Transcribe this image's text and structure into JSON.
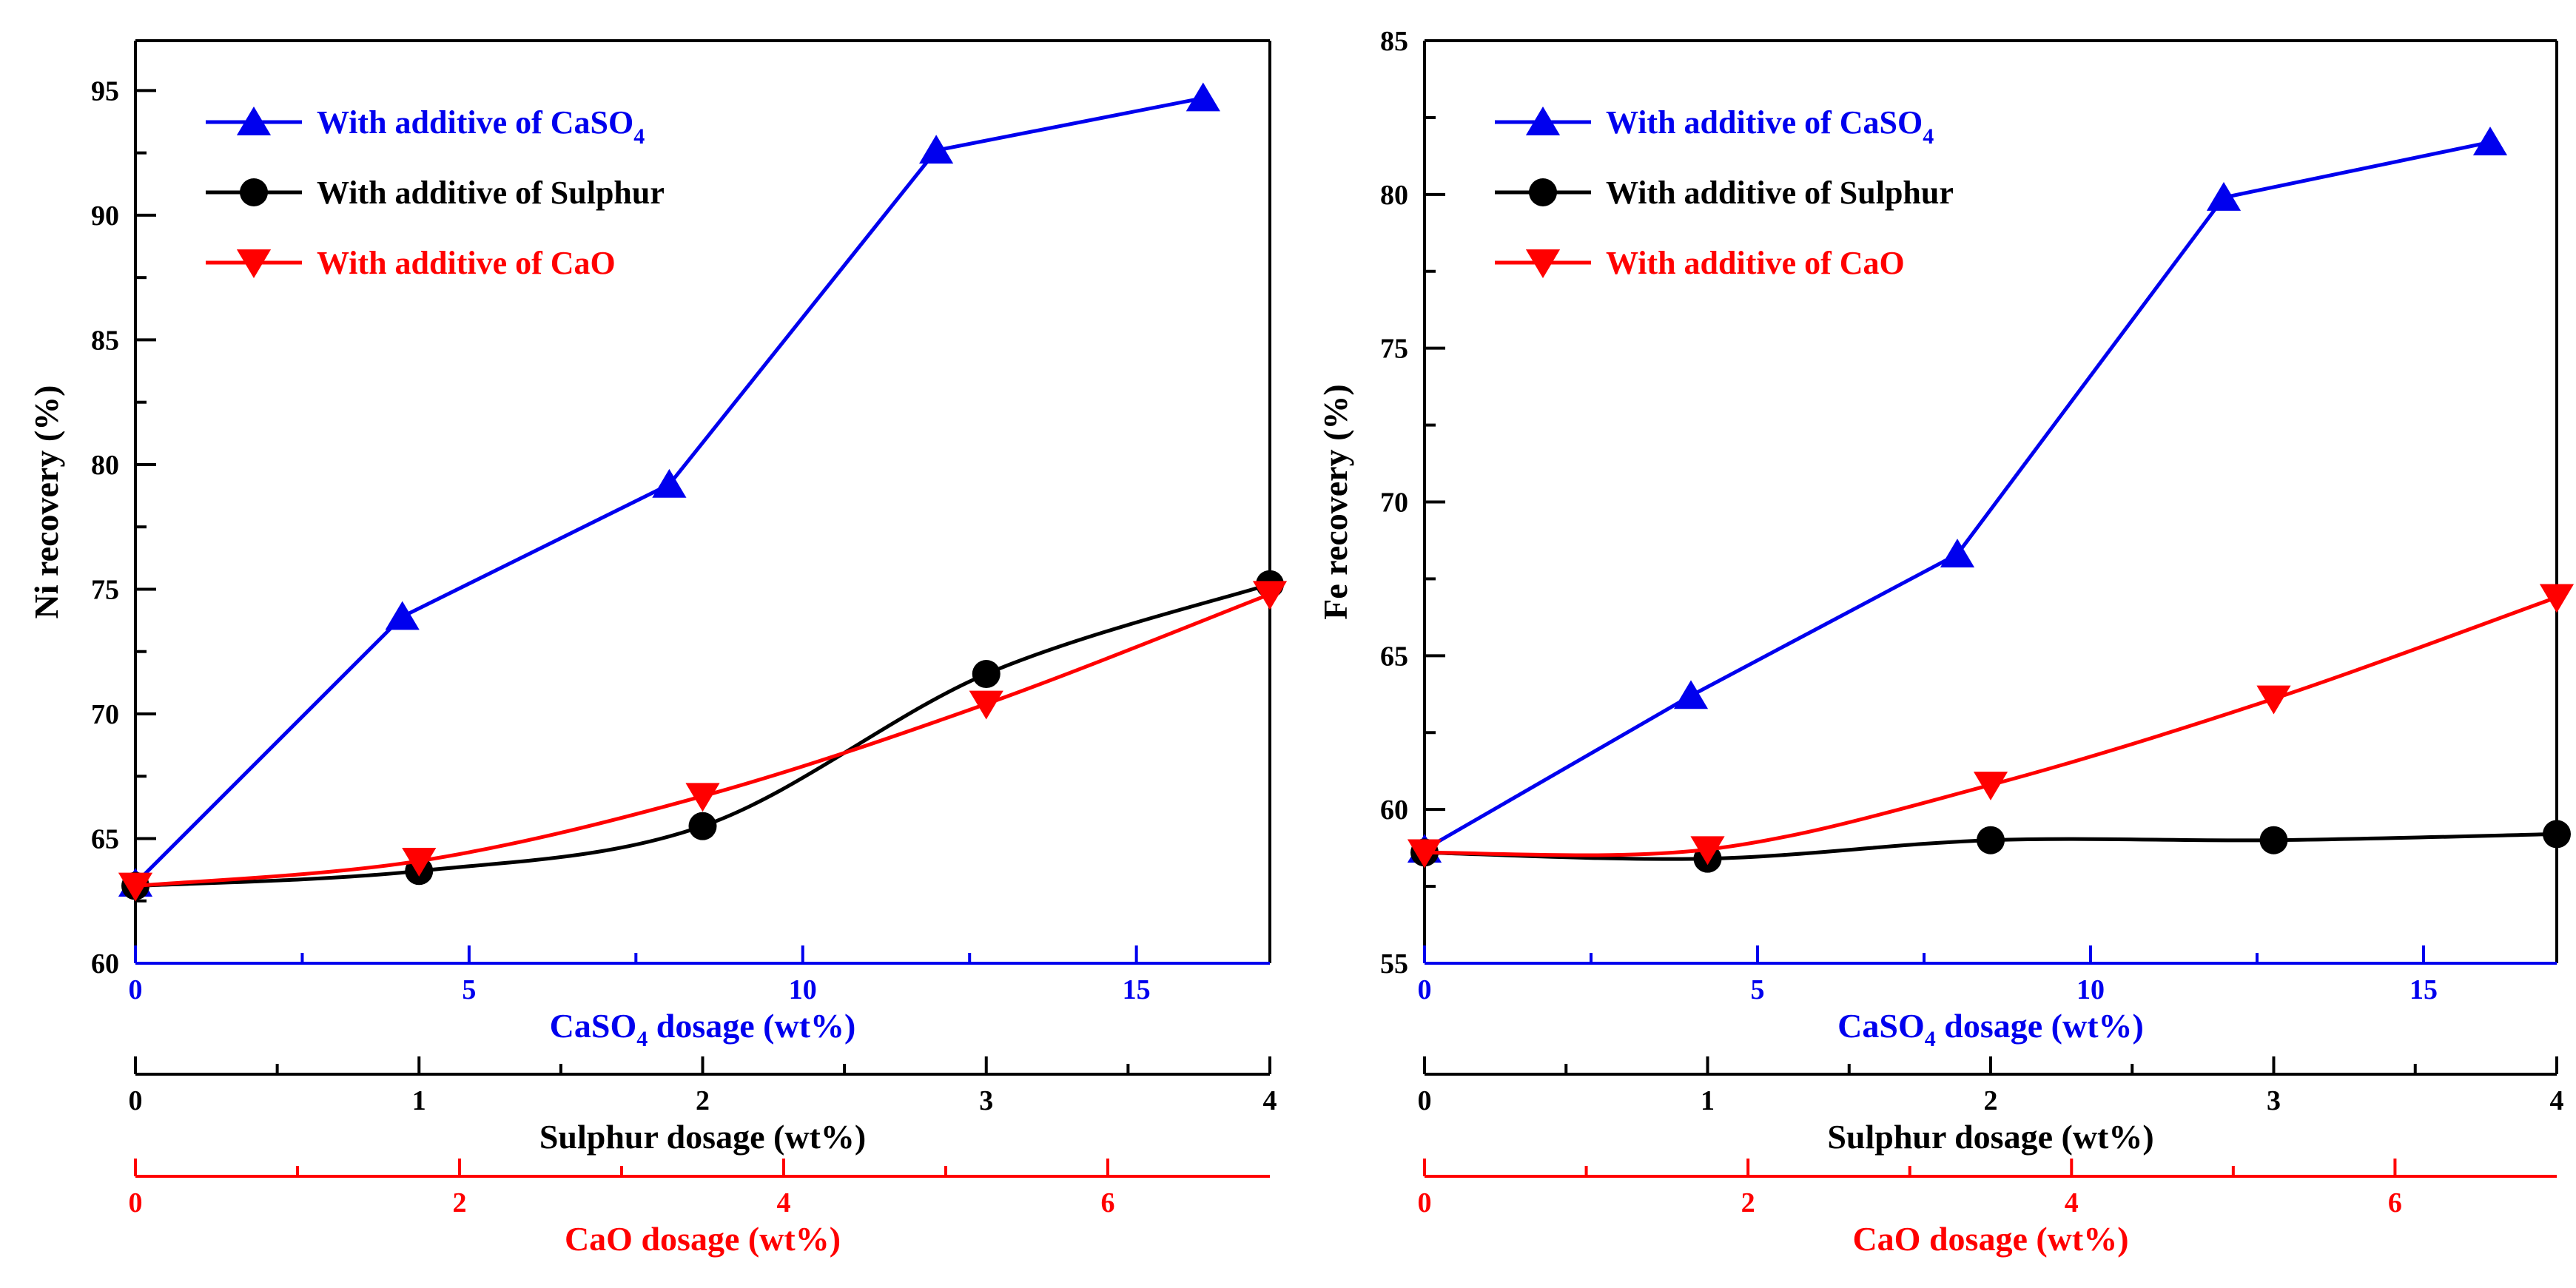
{
  "colors": {
    "casO4": "#0000ee",
    "sulphur": "#000000",
    "cao": "#ff0000",
    "axis": "#000000"
  },
  "chart_data": [
    {
      "type": "line",
      "ylabel": "Ni recovery (%)",
      "ylim": [
        60,
        97
      ],
      "yticks": [
        60,
        65,
        70,
        75,
        80,
        85,
        90,
        95
      ],
      "legend_position": "top-left",
      "grid": false,
      "x_axes": [
        {
          "key": "caso4",
          "label_main": "CaSO",
          "label_sub": "4",
          "label_rest": " dosage (wt%)",
          "range": [
            0,
            17
          ],
          "ticks": [
            0,
            5,
            10,
            15
          ],
          "color": "#0000ee"
        },
        {
          "key": "sulphur",
          "label_main": "Sulphur dosage (wt%)",
          "label_sub": "",
          "label_rest": "",
          "range": [
            0,
            4
          ],
          "ticks": [
            0,
            1,
            2,
            3,
            4
          ],
          "color": "#000000"
        },
        {
          "key": "cao",
          "label_main": "CaO dosage (wt%)",
          "label_sub": "",
          "label_rest": "",
          "range": [
            0,
            7
          ],
          "ticks": [
            0,
            2,
            4,
            6
          ],
          "color": "#ff0000"
        }
      ],
      "series": [
        {
          "name_main": "With additive of CaSO",
          "name_sub": "4",
          "axis": "caso4",
          "marker": "triangle-up",
          "color": "#0000ee",
          "curve": "linear",
          "x": [
            0,
            4,
            8,
            12,
            16
          ],
          "y": [
            63.2,
            73.9,
            79.2,
            92.6,
            94.7
          ]
        },
        {
          "name_main": "With additive of Sulphur",
          "name_sub": "",
          "axis": "sulphur",
          "marker": "circle",
          "color": "#000000",
          "curve": "smooth",
          "x": [
            0,
            1,
            2,
            3,
            4
          ],
          "y": [
            63.1,
            63.7,
            65.5,
            71.6,
            75.2
          ]
        },
        {
          "name_main": "With additive of CaO",
          "name_sub": "",
          "axis": "cao",
          "marker": "triangle-down",
          "color": "#ff0000",
          "curve": "smooth",
          "x": [
            0,
            1.75,
            3.5,
            5.25,
            7
          ],
          "y": [
            63.1,
            64.1,
            66.7,
            70.4,
            74.8
          ]
        }
      ]
    },
    {
      "type": "line",
      "ylabel": "Fe recovery (%)",
      "ylim": [
        55,
        85
      ],
      "yticks": [
        55,
        60,
        65,
        70,
        75,
        80,
        85
      ],
      "legend_position": "top-left",
      "grid": false,
      "x_axes": [
        {
          "key": "caso4",
          "label_main": "CaSO",
          "label_sub": "4",
          "label_rest": " dosage (wt%)",
          "range": [
            0,
            17
          ],
          "ticks": [
            0,
            5,
            10,
            15
          ],
          "color": "#0000ee"
        },
        {
          "key": "sulphur",
          "label_main": "Sulphur dosage (wt%)",
          "label_sub": "",
          "label_rest": "",
          "range": [
            0,
            4
          ],
          "ticks": [
            0,
            1,
            2,
            3,
            4
          ],
          "color": "#000000"
        },
        {
          "key": "cao",
          "label_main": "CaO dosage (wt%)",
          "label_sub": "",
          "label_rest": "",
          "range": [
            0,
            7
          ],
          "ticks": [
            0,
            2,
            4,
            6
          ],
          "color": "#ff0000"
        }
      ],
      "series": [
        {
          "name_main": "With additive of CaSO",
          "name_sub": "4",
          "axis": "caso4",
          "marker": "triangle-up",
          "color": "#0000ee",
          "curve": "linear",
          "x": [
            0,
            4,
            8,
            12,
            16
          ],
          "y": [
            58.7,
            63.7,
            68.3,
            79.9,
            81.7
          ]
        },
        {
          "name_main": "With additive of Sulphur",
          "name_sub": "",
          "axis": "sulphur",
          "marker": "circle",
          "color": "#000000",
          "curve": "smooth",
          "x": [
            0,
            1,
            2,
            3,
            4
          ],
          "y": [
            58.6,
            58.4,
            59.0,
            59.0,
            59.2
          ]
        },
        {
          "name_main": "With additive of CaO",
          "name_sub": "",
          "axis": "cao",
          "marker": "triangle-down",
          "color": "#ff0000",
          "curve": "smooth",
          "x": [
            0,
            1.75,
            3.5,
            5.25,
            7
          ],
          "y": [
            58.6,
            58.7,
            60.8,
            63.6,
            66.9
          ]
        }
      ]
    }
  ]
}
